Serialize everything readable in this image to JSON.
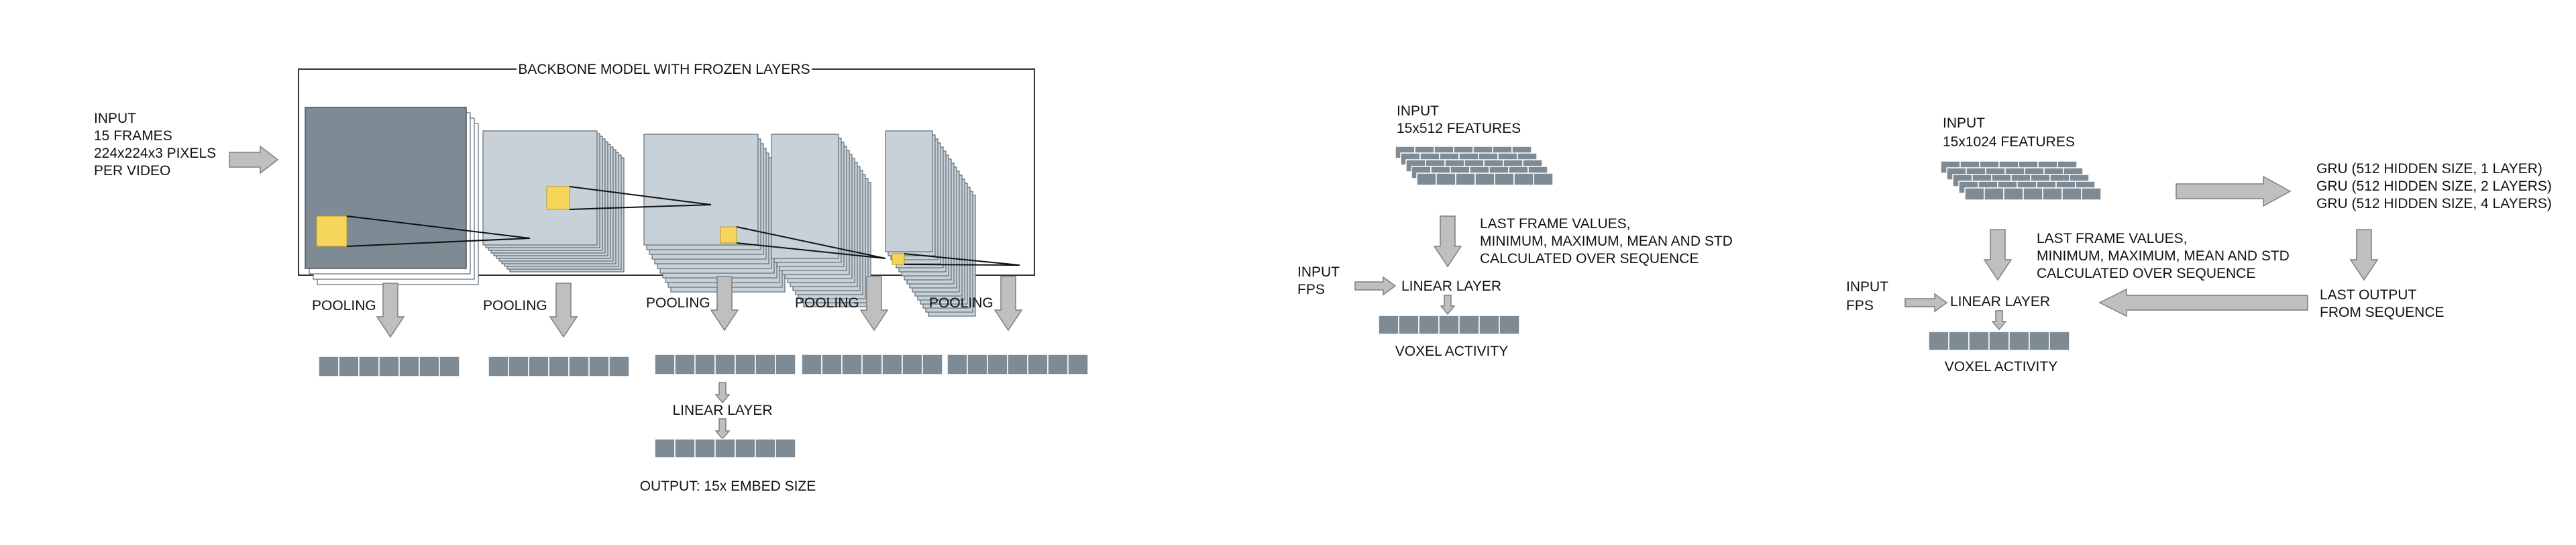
{
  "backbone": {
    "title": "BACKBONE MODEL WITH FROZEN LAYERS",
    "input_lines": [
      "INPUT",
      "15 FRAMES",
      "224x224x3 PIXELS",
      "PER VIDEO"
    ],
    "pooling_label": "POOLING",
    "linear_label": "LINEAR LAYER",
    "output_label": "OUTPUT: 15x EMBED SIZE"
  },
  "model_a": {
    "input_lines": [
      "INPUT",
      "15x512 FEATURES"
    ],
    "stats_lines": [
      "LAST FRAME VALUES,",
      "MINIMUM, MAXIMUM, MEAN AND STD",
      "CALCULATED OVER SEQUENCE"
    ],
    "fps_lines": [
      "INPUT",
      "FPS"
    ],
    "linear_label": "LINEAR LAYER",
    "output_label": "VOXEL ACTIVITY"
  },
  "model_b": {
    "input_lines": [
      "INPUT",
      "15x1024 FEATURES"
    ],
    "stats_lines": [
      "LAST FRAME VALUES,",
      "MINIMUM, MAXIMUM, MEAN AND STD",
      "CALCULATED OVER SEQUENCE"
    ],
    "gru_lines": [
      "GRU (512 HIDDEN SIZE, 1 LAYER)",
      "GRU (512 HIDDEN SIZE, 2 LAYERS)",
      "GRU (512 HIDDEN SIZE, 4 LAYERS)"
    ],
    "last_output_lines": [
      "LAST OUTPUT",
      "FROM SEQUENCE"
    ],
    "fps_lines": [
      "INPUT",
      "FPS"
    ],
    "linear_label": "LINEAR LAYER",
    "output_label": "VOXEL ACTIVITY"
  },
  "colors": {
    "block": "#7e8b95",
    "layer_light": "#c9d1d8",
    "kernel": "#f5d55a",
    "arrow_fill": "#bfbfbf",
    "arrow_stroke": "#7f7f7f"
  }
}
